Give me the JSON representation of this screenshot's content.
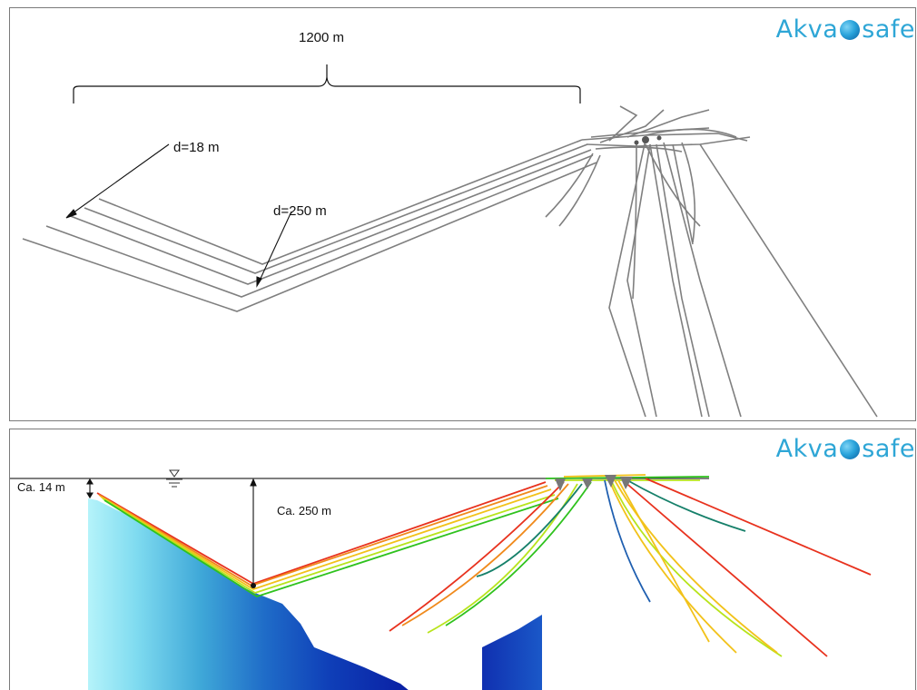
{
  "logo": {
    "left_text": "Akva",
    "right_text": "safe",
    "icon": "globe-icon"
  },
  "top_panel": {
    "span_label": "1200 m",
    "depth_label_shallow": "d=18 m",
    "depth_label_deep": "d=250 m",
    "line_color": "#7f7f7f"
  },
  "bottom_panel": {
    "surface_depth_label": "Ca. 14 m",
    "max_depth_label": "Ca. 250 m",
    "water_surface_symbol": "water-level-icon",
    "line_colors": [
      "#e8321e",
      "#f08a1c",
      "#f2c21a",
      "#b8e41c",
      "#2fc21e",
      "#16806a",
      "#1f5fb0"
    ],
    "terrain_colors": [
      "#b5f3fa",
      "#0a1fa3"
    ]
  }
}
